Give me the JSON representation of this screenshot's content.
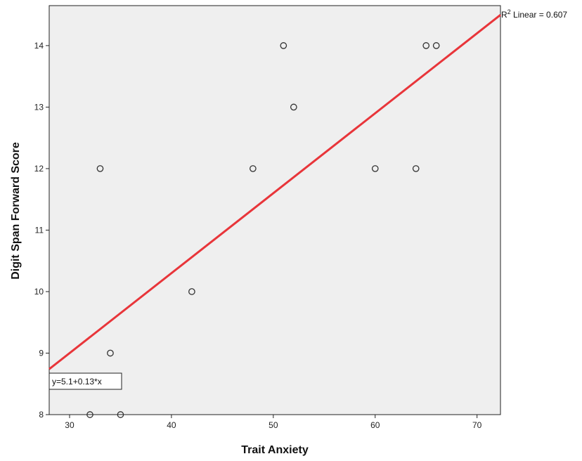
{
  "chart_data": {
    "type": "scatter",
    "title": "",
    "xlabel": "Trait Anxiety",
    "ylabel": "Digit Span Forward Score",
    "xlim": [
      28,
      72.3
    ],
    "ylim": [
      8,
      14.65
    ],
    "x_ticks": [
      30,
      40,
      50,
      60,
      70
    ],
    "y_ticks": [
      8,
      9,
      10,
      11,
      12,
      13,
      14
    ],
    "grid": false,
    "points": [
      {
        "x": 32,
        "y": 8
      },
      {
        "x": 35,
        "y": 8
      },
      {
        "x": 34,
        "y": 9
      },
      {
        "x": 33,
        "y": 12
      },
      {
        "x": 42,
        "y": 10
      },
      {
        "x": 48,
        "y": 12
      },
      {
        "x": 51,
        "y": 14
      },
      {
        "x": 52,
        "y": 13
      },
      {
        "x": 60,
        "y": 12
      },
      {
        "x": 64,
        "y": 12
      },
      {
        "x": 65,
        "y": 14
      },
      {
        "x": 66,
        "y": 14
      }
    ],
    "fit_line": {
      "intercept": 5.1,
      "slope": 0.13
    },
    "equation_label": "y=5.1+0.13*x",
    "r2_label_prefix": "R",
    "r2_label_sup": "2",
    "r2_label_suffix": " Linear = 0.607",
    "colors": {
      "plot_bg": "#efefef",
      "fit_line": "#e8353a",
      "marker_stroke": "#333333"
    }
  }
}
